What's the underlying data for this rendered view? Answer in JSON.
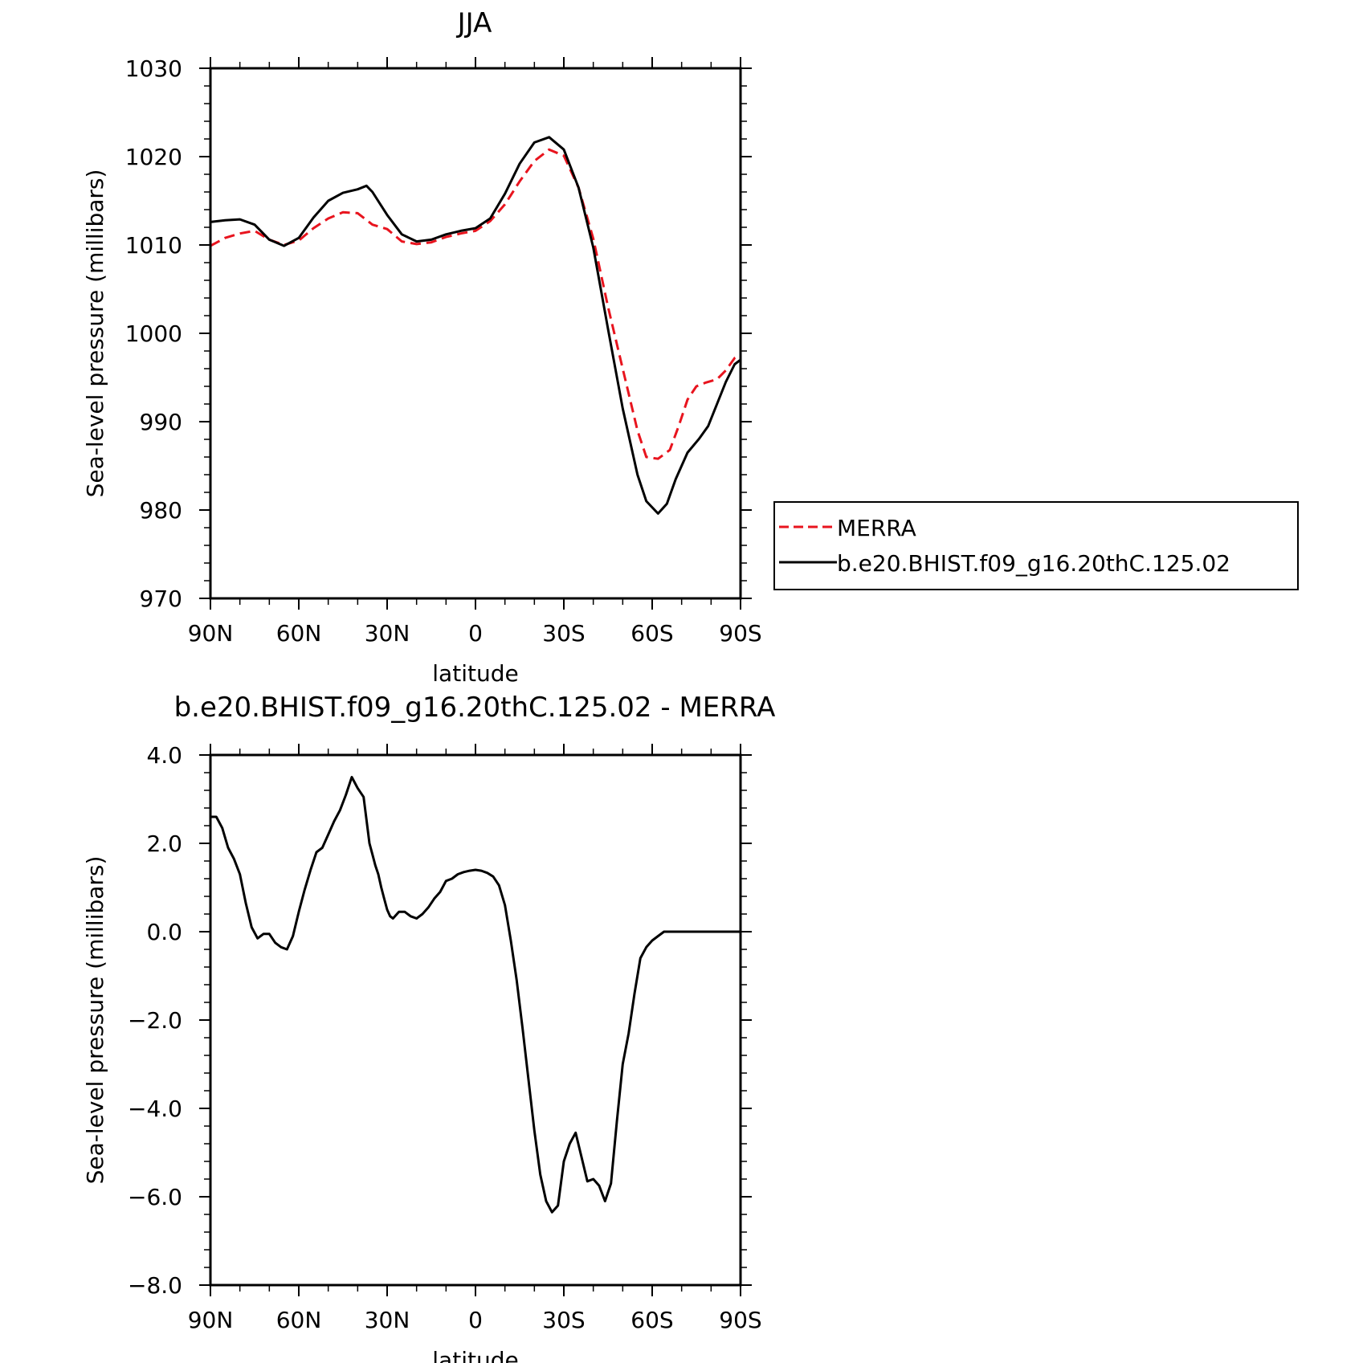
{
  "chart_data": [
    {
      "type": "line",
      "title": "JJA",
      "xlabel": "latitude",
      "ylabel": "Sea-level pressure (millibars)",
      "xlim": [
        90,
        -90
      ],
      "ylim": [
        970,
        1030
      ],
      "x_ticks": [
        90,
        60,
        30,
        0,
        -30,
        -60,
        -90
      ],
      "x_tick_labels": [
        "90N",
        "60N",
        "30N",
        "0",
        "30S",
        "60S",
        "90S"
      ],
      "y_ticks": [
        970,
        980,
        990,
        1000,
        1010,
        1020,
        1030
      ],
      "y_tick_labels": [
        "970",
        "980",
        "990",
        "1000",
        "1010",
        "1020",
        "1030"
      ],
      "grid": false,
      "legend": "right",
      "series": [
        {
          "name": "MERRA",
          "color": "#e8141e",
          "dash": "dashed",
          "x": [
            90,
            85,
            80,
            75,
            70,
            65,
            60,
            55,
            50,
            45,
            40,
            35,
            30,
            25,
            20,
            15,
            10,
            5,
            0,
            -5,
            -10,
            -15,
            -20,
            -25,
            -30,
            -35,
            -40,
            -45,
            -50,
            -55,
            -58,
            -62,
            -66,
            -69,
            -72,
            -75,
            -78,
            -82,
            -85,
            -88,
            -90
          ],
          "values": [
            1009.9,
            1010.8,
            1011.3,
            1011.6,
            1010.6,
            1010.0,
            1010.5,
            1011.9,
            1013.0,
            1013.7,
            1013.6,
            1012.3,
            1011.8,
            1010.4,
            1010.1,
            1010.3,
            1010.9,
            1011.3,
            1011.6,
            1012.7,
            1014.6,
            1017.2,
            1019.5,
            1020.8,
            1020.1,
            1016.5,
            1010.7,
            1003.0,
            996.0,
            989.0,
            986.0,
            985.8,
            986.8,
            989.5,
            992.5,
            994.0,
            994.4,
            994.8,
            995.8,
            997.2,
            997.5
          ]
        },
        {
          "name": "b.e20.BHIST.f09_g16.20thC.125.02",
          "color": "#000000",
          "dash": "solid",
          "x": [
            90,
            85,
            80,
            75,
            70,
            65,
            60,
            55,
            50,
            45,
            40,
            37,
            35,
            30,
            25,
            20,
            15,
            10,
            5,
            0,
            -5,
            -10,
            -15,
            -20,
            -25,
            -30,
            -35,
            -40,
            -45,
            -50,
            -55,
            -58,
            -62,
            -65,
            -68,
            -72,
            -76,
            -79,
            -82,
            -85,
            -88,
            -90
          ],
          "values": [
            1012.6,
            1012.8,
            1012.9,
            1012.3,
            1010.6,
            1009.9,
            1010.8,
            1013.1,
            1015.0,
            1015.9,
            1016.3,
            1016.7,
            1016.0,
            1013.4,
            1011.2,
            1010.4,
            1010.6,
            1011.2,
            1011.6,
            1011.9,
            1013.0,
            1015.8,
            1019.2,
            1021.6,
            1022.2,
            1020.8,
            1016.5,
            1009.7,
            1000.5,
            991.5,
            984.0,
            981.0,
            979.6,
            980.7,
            983.5,
            986.5,
            988.1,
            989.5,
            992.0,
            994.5,
            996.5,
            997.0
          ]
        }
      ]
    },
    {
      "type": "line",
      "title": "b.e20.BHIST.f09_g16.20thC.125.02 - MERRA",
      "xlabel": "latitude",
      "ylabel": "Sea-level pressure (millibars)",
      "xlim": [
        90,
        -90
      ],
      "ylim": [
        -8,
        4
      ],
      "x_ticks": [
        90,
        60,
        30,
        0,
        -30,
        -60,
        -90
      ],
      "x_tick_labels": [
        "90N",
        "60N",
        "30N",
        "0",
        "30S",
        "60S",
        "90S"
      ],
      "y_ticks": [
        -8,
        -6,
        -4,
        -2,
        0,
        2,
        4
      ],
      "y_tick_labels": [
        "−8.0",
        "−6.0",
        "−4.0",
        "−2.0",
        "0.0",
        "2.0",
        "4.0"
      ],
      "grid": false,
      "series": [
        {
          "color": "#000000",
          "dash": "solid",
          "x": [
            90,
            88,
            86,
            84,
            82,
            80,
            78,
            76,
            74,
            72,
            70,
            68,
            66,
            64,
            62,
            60,
            58,
            56,
            54,
            52,
            50,
            48,
            46,
            44,
            42,
            40,
            38,
            36,
            35,
            34,
            33,
            32,
            31,
            30,
            29,
            28,
            26,
            24,
            22,
            20,
            18,
            16,
            14,
            12,
            10,
            8,
            6,
            4,
            2,
            0,
            -2,
            -4,
            -6,
            -8,
            -10,
            -12,
            -14,
            -16,
            -18,
            -20,
            -22,
            -24,
            -26,
            -28,
            -30,
            -32,
            -34,
            -36,
            -38,
            -40,
            -42,
            -44,
            -46,
            -48,
            -50,
            -52,
            -54,
            -56,
            -58,
            -60,
            -62,
            -64,
            -66,
            -67,
            -68,
            -70,
            -72,
            -73,
            -74,
            -75,
            -76,
            -77,
            -78,
            -79,
            -80,
            -81,
            -82,
            -83,
            -84,
            -85,
            -86,
            -87,
            -88,
            -89,
            -90
          ],
          "values": [
            2.6,
            2.6,
            2.35,
            1.9,
            1.65,
            1.3,
            0.65,
            0.1,
            -0.15,
            -0.05,
            -0.05,
            -0.25,
            -0.35,
            -0.4,
            -0.1,
            0.45,
            0.95,
            1.4,
            1.8,
            1.9,
            2.2,
            2.5,
            2.75,
            3.1,
            3.5,
            3.25,
            3.05,
            2.0,
            1.75,
            1.5,
            1.3,
            1.0,
            0.75,
            0.5,
            0.35,
            0.3,
            0.45,
            0.45,
            0.35,
            0.3,
            0.4,
            0.55,
            0.75,
            0.9,
            1.15,
            1.2,
            1.3,
            1.35,
            1.38,
            1.4,
            1.38,
            1.33,
            1.25,
            1.05,
            0.6,
            -0.2,
            -1.1,
            -2.2,
            -3.35,
            -4.5,
            -5.5,
            -6.1,
            -6.35,
            -6.2,
            -5.2,
            -4.8,
            -4.55,
            -5.1,
            -5.65,
            -5.6,
            -5.75,
            -6.1,
            -5.7,
            -4.3,
            -3.0,
            -2.3,
            -1.4,
            -0.6,
            -0.35,
            -0.2,
            -0.1,
            0.0,
            0.0,
            0.0,
            0.0,
            0.0,
            0.0,
            0.0,
            0.0,
            0.0,
            0.0,
            0.0,
            0.0,
            0.0,
            0.0,
            0.0,
            0.0,
            0.0,
            0.0,
            0.0,
            0.0,
            0.0,
            0.0,
            0.0,
            0.0
          ]
        }
      ]
    }
  ],
  "legend": {
    "items": [
      {
        "label": "MERRA",
        "color": "#e8141e",
        "dash": "dashed"
      },
      {
        "label": "b.e20.BHIST.f09_g16.20thC.125.02",
        "color": "#000000",
        "dash": "solid"
      }
    ]
  }
}
